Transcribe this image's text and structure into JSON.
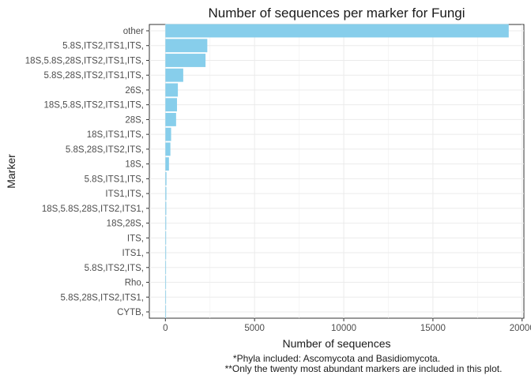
{
  "chart_data": {
    "type": "bar",
    "orientation": "horizontal",
    "title": "Number of sequences per marker for Fungi",
    "xlabel": "Number of sequences",
    "ylabel": "Marker",
    "xlim": [
      -900,
      20100
    ],
    "xticks": [
      0,
      5000,
      10000,
      15000,
      20000
    ],
    "grid": true,
    "bar_color": "#87ceeb",
    "categories": [
      "other",
      "5.8S,ITS2,ITS1,ITS,",
      "18S,5.8S,28S,ITS2,ITS1,ITS,",
      "5.8S,28S,ITS2,ITS1,ITS,",
      "26S,",
      "18S,5.8S,ITS2,ITS1,ITS,",
      "28S,",
      "18S,ITS1,ITS,",
      "5.8S,28S,ITS2,ITS,",
      "18S,",
      "5.8S,ITS1,ITS,",
      "ITS1,ITS,",
      "18S,5.8S,28S,ITS2,ITS1,",
      "18S,28S,",
      "ITS,",
      "ITS1,",
      "5.8S,ITS2,ITS,",
      "Rho,",
      "5.8S,28S,ITS2,ITS1,",
      "CYTB,"
    ],
    "values": [
      19250,
      2350,
      2250,
      1000,
      700,
      650,
      600,
      320,
      280,
      200,
      60,
      55,
      50,
      45,
      40,
      40,
      35,
      30,
      25,
      20
    ]
  },
  "captions": {
    "line1": "*Phyla included: Ascomycota and Basidiomycota.",
    "line2": "**Only the twenty most abundant markers are included in this plot."
  }
}
